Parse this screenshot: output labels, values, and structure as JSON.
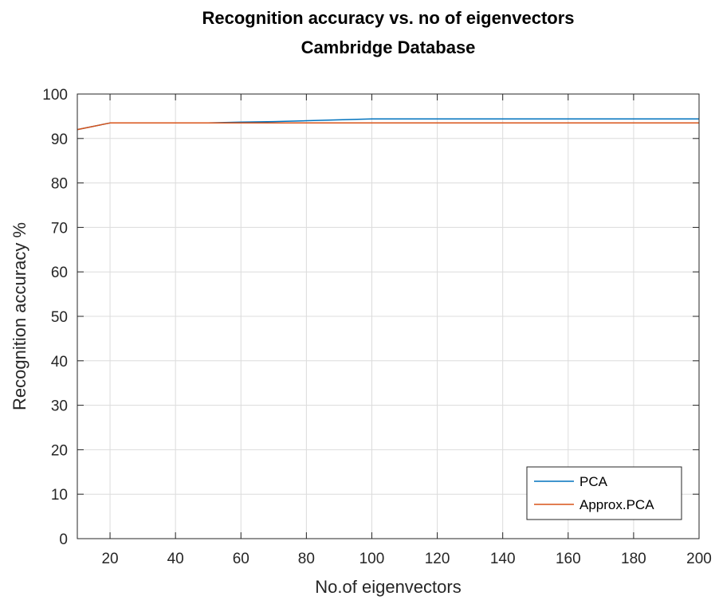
{
  "chart_data": {
    "type": "line",
    "title": [
      "Recognition accuracy vs. no of eigenvectors",
      "Cambridge Database"
    ],
    "xlabel": "No.of eigenvectors",
    "ylabel": "Recognition accuracy %",
    "xlim": [
      10,
      200
    ],
    "ylim": [
      0,
      100
    ],
    "xticks": [
      20,
      40,
      60,
      80,
      100,
      120,
      140,
      160,
      180,
      200
    ],
    "yticks": [
      0,
      10,
      20,
      30,
      40,
      50,
      60,
      70,
      80,
      90,
      100
    ],
    "grid": true,
    "legend": "bottom-right",
    "series": [
      {
        "name": "PCA",
        "color": "#0072BD",
        "x": [
          10,
          20,
          30,
          40,
          50,
          60,
          70,
          80,
          90,
          100,
          110,
          120,
          130,
          140,
          150,
          160,
          170,
          180,
          190,
          200
        ],
        "y": [
          92,
          93.5,
          93.5,
          93.5,
          93.5,
          93.7,
          93.8,
          94,
          94.2,
          94.4,
          94.4,
          94.4,
          94.4,
          94.4,
          94.4,
          94.4,
          94.4,
          94.4,
          94.4,
          94.4
        ]
      },
      {
        "name": "Approx.PCA",
        "color": "#D95319",
        "x": [
          10,
          20,
          30,
          40,
          50,
          60,
          70,
          80,
          90,
          100,
          110,
          120,
          130,
          140,
          150,
          160,
          170,
          180,
          190,
          200
        ],
        "y": [
          92,
          93.5,
          93.5,
          93.5,
          93.5,
          93.5,
          93.5,
          93.5,
          93.5,
          93.5,
          93.5,
          93.5,
          93.5,
          93.5,
          93.5,
          93.5,
          93.5,
          93.5,
          93.5,
          93.5
        ]
      }
    ]
  }
}
